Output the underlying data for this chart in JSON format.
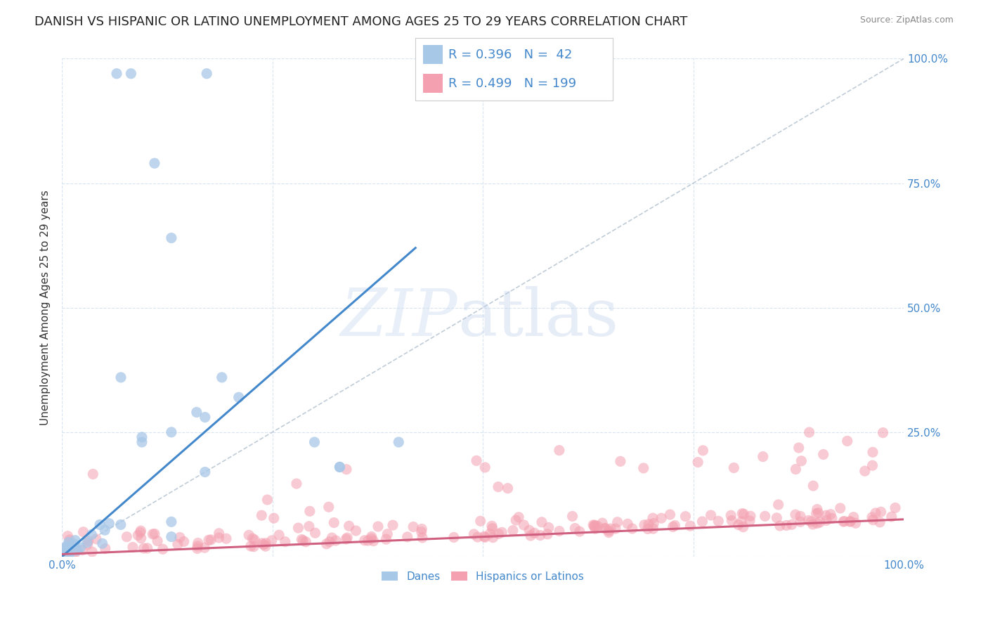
{
  "title": "DANISH VS HISPANIC OR LATINO UNEMPLOYMENT AMONG AGES 25 TO 29 YEARS CORRELATION CHART",
  "source": "Source: ZipAtlas.com",
  "ylabel": "Unemployment Among Ages 25 to 29 years",
  "xlim": [
    0,
    1
  ],
  "ylim": [
    0,
    1
  ],
  "xticks": [
    0.0,
    0.25,
    0.5,
    0.75,
    1.0
  ],
  "xtick_labels": [
    "0.0%",
    "",
    "",
    "",
    "100.0%"
  ],
  "yticks": [
    0.0,
    0.25,
    0.5,
    0.75,
    1.0
  ],
  "right_ytick_labels": [
    "",
    "25.0%",
    "50.0%",
    "75.0%",
    "100.0%"
  ],
  "danes_R": 0.396,
  "danes_N": 42,
  "hispanic_R": 0.499,
  "hispanic_N": 199,
  "danes_color": "#a8c8e8",
  "hispanic_color": "#f4a0b0",
  "danes_line_color": "#4488cc",
  "hispanic_line_color": "#d06080",
  "ref_line_color": "#c0ccd8",
  "legend_blue_fill": "#a8c8e8",
  "legend_pink_fill": "#f4a0b0",
  "legend_text_color": "#4488cc",
  "background_color": "#ffffff",
  "title_fontsize": 13,
  "axis_label_fontsize": 11,
  "tick_fontsize": 11,
  "legend_fontsize": 13,
  "source_fontsize": 9,
  "seed": 42
}
